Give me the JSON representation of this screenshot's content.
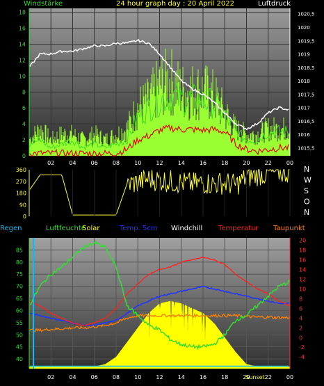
{
  "colors": {
    "background": "#000000",
    "wind": "#66ff33",
    "gust": "#99ff33",
    "pressure": "#ffffff",
    "wind_dir": "#ffff33",
    "regen": "#00bfff",
    "luftfeuchte": "#33dd33",
    "solar": "#ffff00",
    "temp5cm": "#2233ff",
    "windchill": "#ffffff",
    "temperatur": "#ff2020",
    "taupunkt": "#ff8000",
    "right_axis": "#ff3333"
  },
  "chart_data": [
    {
      "id": "wind_pressure",
      "type": "bar+line",
      "title": "24 hour graph day : 20 April 2022",
      "left_label": "Windstärke",
      "right_label": "Luftdruck",
      "x_ticks": [
        "02",
        "04",
        "06",
        "08",
        "10",
        "12",
        "14",
        "16",
        "18",
        "20",
        "22",
        "00"
      ],
      "hours": [
        0,
        1,
        2,
        3,
        4,
        5,
        6,
        7,
        8,
        9,
        10,
        11,
        12,
        13,
        14,
        15,
        16,
        17,
        18,
        19,
        20,
        21,
        22,
        23,
        24
      ],
      "y_left_ticks": [
        "0",
        "2",
        "4",
        "6",
        "8",
        "10",
        "12",
        "14",
        "16",
        "18"
      ],
      "y_left_range": [
        0,
        18.5
      ],
      "y_right_ticks": [
        "1015,5",
        "1016",
        "1016,5",
        "1017",
        "1017,5",
        "1018",
        "1018,5",
        "1019",
        "1019,5",
        "1020",
        "1020,5"
      ],
      "y_right_range": [
        1015.2,
        1020.7
      ],
      "series": [
        {
          "name": "Windstärke",
          "values": [
            1.5,
            2,
            1,
            1.5,
            2,
            1,
            1.5,
            1,
            1.5,
            2,
            5,
            6,
            7,
            7.5,
            7,
            7,
            7,
            6.5,
            5,
            3,
            2,
            2,
            3,
            3,
            3
          ]
        },
        {
          "name": "Böen",
          "values": [
            3,
            5,
            3,
            4,
            4,
            3,
            4,
            3,
            4,
            5,
            9,
            10,
            13,
            14,
            12,
            12,
            12,
            11,
            8,
            5,
            4,
            4,
            5,
            5,
            5
          ]
        },
        {
          "name": "Mittelwind",
          "values": [
            0.3,
            0.3,
            0.3,
            0.3,
            0.3,
            0.3,
            0.3,
            0.3,
            0.3,
            0.8,
            2,
            2.5,
            3.2,
            3.5,
            3.3,
            3.3,
            3.2,
            3.3,
            3,
            1.5,
            0.8,
            0.6,
            0.8,
            1,
            1
          ]
        },
        {
          "name": "Luftdruck",
          "values": [
            1018.5,
            1019,
            1019,
            1019.1,
            1019.1,
            1019.2,
            1019.3,
            1019.3,
            1019.4,
            1019.4,
            1019.5,
            1019.4,
            1019,
            1018.5,
            1018,
            1017.7,
            1017.5,
            1017.2,
            1016.8,
            1016.4,
            1016.2,
            1016.4,
            1016.8,
            1017,
            1016.9
          ]
        }
      ]
    },
    {
      "id": "wind_direction",
      "type": "line",
      "y_ticks": [
        "0",
        "90",
        "180",
        "270",
        "360"
      ],
      "y_range": [
        0,
        360
      ],
      "compass": [
        "N",
        "W",
        "S",
        "O",
        "N"
      ],
      "series": [
        {
          "name": "Windrichtung",
          "values": [
            200,
            320,
            320,
            320,
            10,
            10,
            10,
            10,
            10,
            250,
            260,
            290,
            280,
            270,
            260,
            250,
            260,
            250,
            260,
            240,
            300,
            320,
            330,
            340,
            340
          ]
        }
      ]
    },
    {
      "id": "temp_humidity",
      "type": "line",
      "legend": [
        "Regen",
        "Luftfeuchte",
        "Solar",
        "Temp. 5cm",
        "Windchill",
        "Temperatur",
        "Taupunkt"
      ],
      "x_ticks": [
        "02",
        "04",
        "06",
        "08",
        "10",
        "12",
        "14",
        "16",
        "18",
        "20",
        "Sunset",
        "22",
        "00"
      ],
      "y_left_ticks": [
        "40",
        "45",
        "50",
        "55",
        "60",
        "65",
        "70",
        "75",
        "80",
        "85"
      ],
      "y_left_range": [
        36,
        90
      ],
      "y_right_ticks": [
        "-4",
        "-2",
        "0",
        "2",
        "4",
        "6",
        "8",
        "10",
        "12",
        "14",
        "16",
        "18",
        "20"
      ],
      "y_right_range": [
        -6.4,
        20.5
      ],
      "series": [
        {
          "name": "Luftfeuchte",
          "axis": "left",
          "values": [
            62,
            70,
            75,
            78,
            82,
            86,
            88,
            86,
            78,
            62,
            58,
            54,
            52,
            48,
            46,
            45,
            45,
            46,
            50,
            56,
            58,
            62,
            66,
            70,
            72
          ]
        },
        {
          "name": "Temperatur",
          "axis": "right",
          "values": [
            7.5,
            6.5,
            5,
            4,
            3,
            2.5,
            3,
            4,
            6,
            9,
            11,
            13,
            14,
            14.5,
            15.5,
            16,
            16.5,
            16,
            15,
            13,
            11.5,
            10,
            9,
            7.5,
            6.5
          ]
        },
        {
          "name": "Temp. 5cm",
          "axis": "right",
          "values": [
            5,
            4.5,
            4,
            3.5,
            3,
            2.5,
            2.5,
            3,
            3.5,
            5,
            6.5,
            7.5,
            8.5,
            9,
            9.5,
            10,
            10.5,
            10,
            9.5,
            9,
            8.5,
            8,
            7.5,
            7,
            7
          ]
        },
        {
          "name": "Taupunkt",
          "axis": "right",
          "values": [
            1.5,
            1.5,
            1.7,
            1.8,
            2,
            2,
            2.2,
            2.5,
            3,
            4,
            4.5,
            4.5,
            4.5,
            4.5,
            4.5,
            4.5,
            4.5,
            4.5,
            4.5,
            4.5,
            4.3,
            4.2,
            4.2,
            4.1,
            4.1
          ]
        },
        {
          "name": "Windchill",
          "axis": "right",
          "values": [
            -6,
            -6,
            -6,
            -6,
            -6,
            -6,
            -6,
            -6,
            -6,
            -6,
            -6,
            -6,
            -6,
            -6,
            -6,
            -6,
            -6,
            -6,
            -6,
            -6,
            -6,
            -6,
            -6,
            -6,
            -6
          ]
        },
        {
          "name": "Solar",
          "axis": "right",
          "values": [
            -6,
            -6,
            -6,
            -6,
            -6,
            -6,
            -6,
            -5.5,
            -4,
            -1,
            2,
            5,
            7,
            7.5,
            7,
            6,
            5,
            3,
            0,
            -3,
            -5.5,
            -6,
            -6,
            -6,
            -6
          ]
        },
        {
          "name": "Regen",
          "axis": "left",
          "values": [
            37,
            37,
            37,
            37,
            37,
            37,
            37,
            37,
            37,
            37,
            37,
            37,
            37,
            37,
            37,
            37,
            37,
            37,
            37,
            37,
            37,
            37,
            37,
            37,
            37
          ]
        }
      ]
    }
  ]
}
